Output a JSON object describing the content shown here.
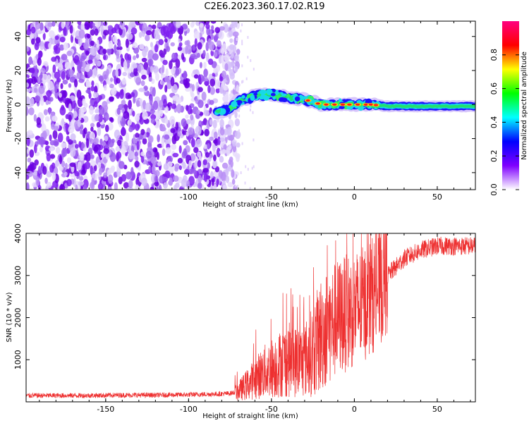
{
  "title": "C2E6.2023.360.17.02.R19",
  "chart_data": [
    {
      "type": "heatmap",
      "xlabel": "Height of straight line (km)",
      "ylabel": "Frequency (Hz)",
      "xlim": [
        -198,
        73
      ],
      "ylim": [
        -50,
        49
      ],
      "xticks": [
        -150,
        -100,
        -50,
        0,
        50
      ],
      "yticks": [
        -40,
        -20,
        0,
        20,
        40
      ],
      "colorbar": {
        "label": "Normalized spectral amplitude",
        "range": [
          0.0,
          1.0
        ],
        "ticks": [
          0.0,
          0.2,
          0.4,
          0.6,
          0.8
        ],
        "colors": [
          "#ffffff",
          "#7f00ff",
          "#0000ff",
          "#00ffff",
          "#00ff00",
          "#ffff00",
          "#ff0000",
          "#ff0080"
        ]
      },
      "noise_region_x": [
        -198,
        -73
      ],
      "signal_track": {
        "x": [
          -83,
          -75,
          -70,
          -60,
          -50,
          -40,
          -30,
          -20,
          -10,
          0,
          10,
          20,
          30,
          40,
          50,
          60,
          73
        ],
        "y": [
          -5,
          -2,
          2,
          5,
          6,
          4,
          3,
          0,
          0,
          0,
          0,
          -1,
          -1,
          -1,
          -1,
          -1,
          -1
        ]
      }
    },
    {
      "type": "line",
      "xlabel": "Height of straight line (km)",
      "ylabel": "SNR (10 * v/v)",
      "xlim": [
        -198,
        73
      ],
      "ylim": [
        0,
        4000
      ],
      "xticks": [
        -150,
        -100,
        -50,
        0,
        50
      ],
      "yticks": [
        1000,
        2000,
        3000,
        4000
      ],
      "color": "#ee3030",
      "series": [
        {
          "x": [
            -198,
            -180,
            -160,
            -140,
            -120,
            -100,
            -90,
            -80,
            -75,
            -70,
            -65,
            -60,
            -55,
            -50,
            -45,
            -40,
            -35,
            -30,
            -25,
            -20,
            -15,
            -10,
            -5,
            0,
            5,
            10,
            15,
            20,
            25,
            30,
            35,
            40,
            45,
            50,
            55,
            60,
            65,
            70,
            73
          ],
          "values": [
            150,
            150,
            150,
            160,
            160,
            170,
            180,
            190,
            200,
            250,
            400,
            550,
            700,
            800,
            900,
            1000,
            950,
            1000,
            1200,
            1600,
            1800,
            2000,
            2100,
            2200,
            2300,
            2500,
            2700,
            3000,
            3200,
            3400,
            3500,
            3600,
            3650,
            3700,
            3700,
            3700,
            3700,
            3700,
            3700
          ]
        }
      ]
    }
  ]
}
